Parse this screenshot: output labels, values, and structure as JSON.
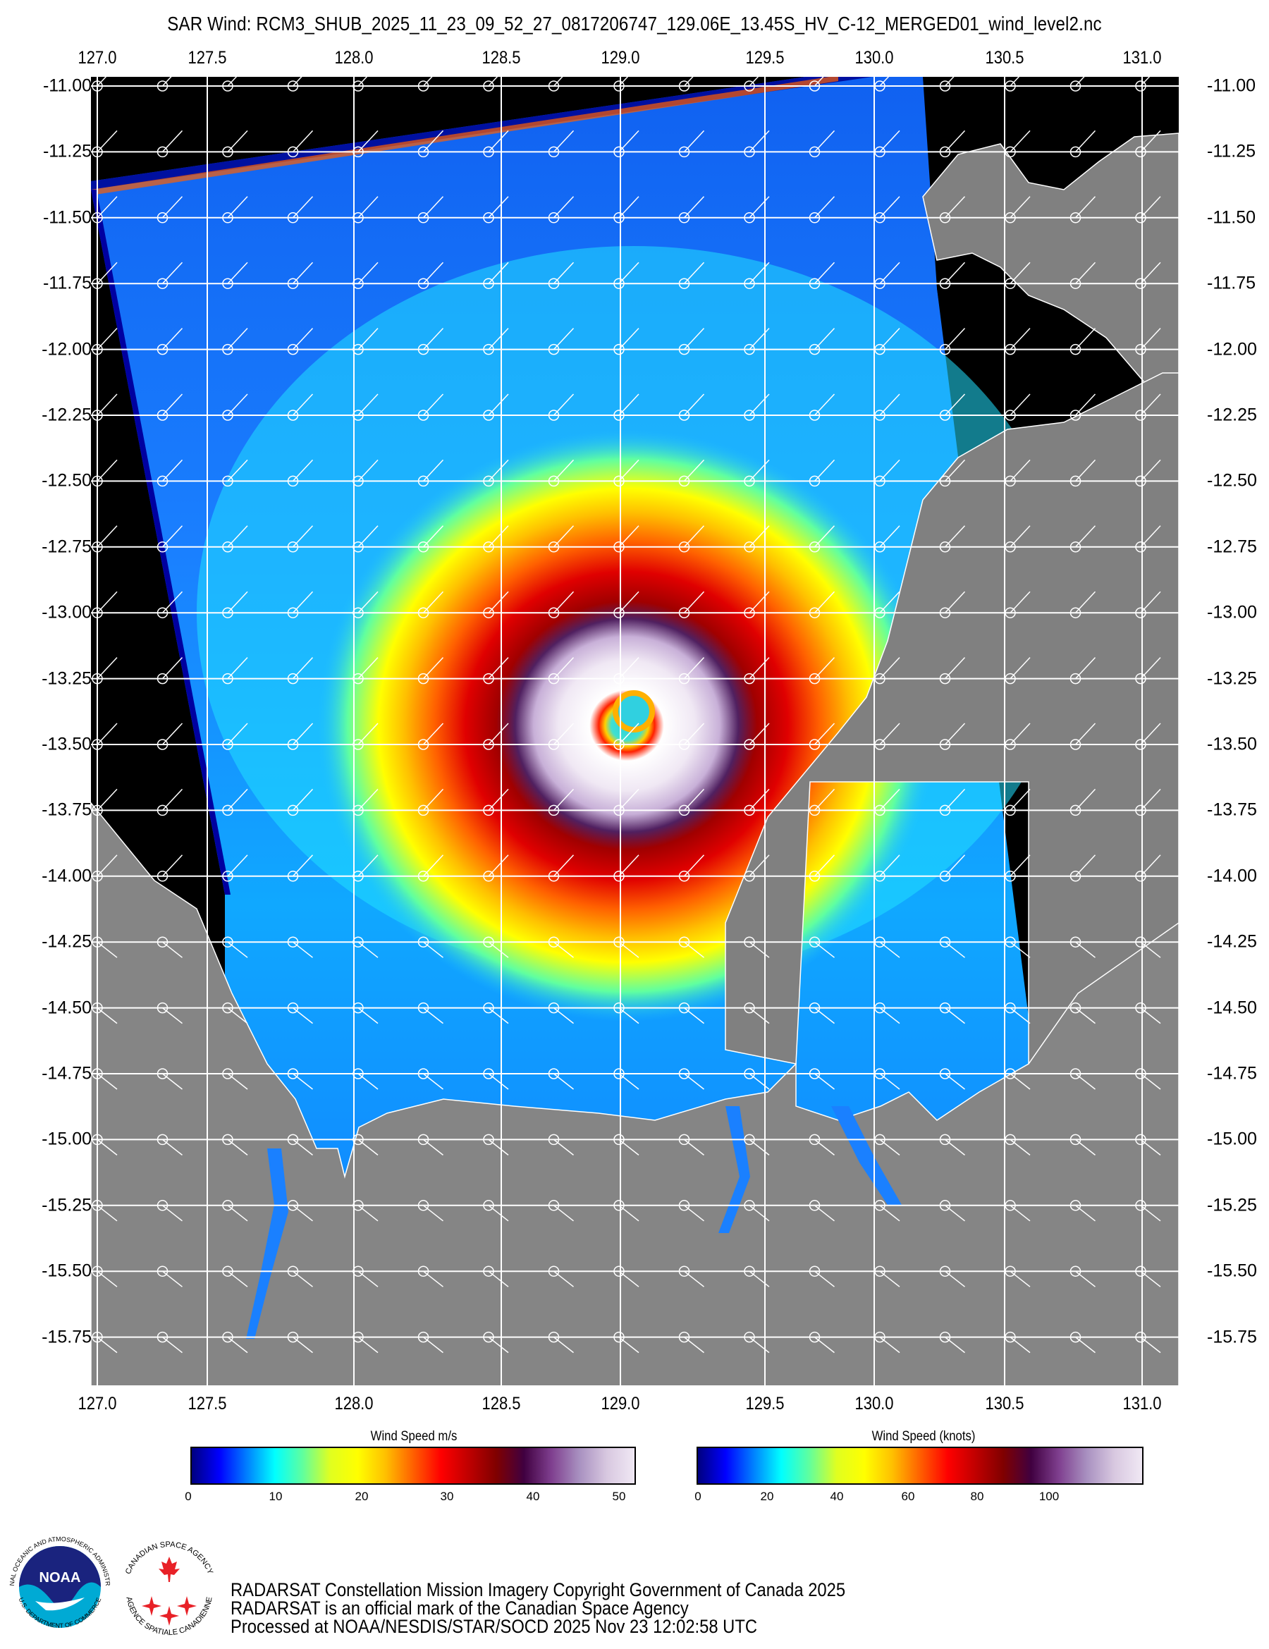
{
  "title": "SAR Wind: RCM3_SHUB_2025_11_23_09_52_27_0817206747_129.06E_13.45S_HV_C-12_MERGED01_wind_level2.nc",
  "map": {
    "lon_ticks": [
      "127.0",
      "127.5",
      "128.0",
      "128.5",
      "129.0",
      "129.5",
      "130.0",
      "130.5",
      "131.0"
    ],
    "lat_ticks": [
      "-11.00",
      "-11.25",
      "-11.50",
      "-11.75",
      "-12.00",
      "-12.25",
      "-12.50",
      "-12.75",
      "-13.00",
      "-13.25",
      "-13.50",
      "-13.75",
      "-14.00",
      "-14.25",
      "-14.50",
      "-14.75",
      "-15.00",
      "-15.25",
      "-15.50",
      "-15.75"
    ],
    "storm_center": {
      "lon": "129.06E",
      "lat": "13.45S"
    },
    "colors": {
      "no_data": "#000000",
      "land": "#808080",
      "grid": "#ffffff"
    }
  },
  "legend_ms": {
    "title": "Wind Speed m/s",
    "ticks": [
      "0",
      "10",
      "20",
      "30",
      "40",
      "50"
    ],
    "min": 0,
    "max": 52
  },
  "legend_knots": {
    "title": "Wind Speed (knots)",
    "ticks": [
      "0",
      "20",
      "40",
      "60",
      "80",
      "100"
    ],
    "min": 0,
    "max": 101
  },
  "colorscale": [
    "#00007f",
    "#0000ff",
    "#0080ff",
    "#00ffff",
    "#5fff9f",
    "#e0ff20",
    "#ffff00",
    "#ffc000",
    "#ff6000",
    "#ff0000",
    "#c00000",
    "#800000",
    "#400040",
    "#7f3f8f",
    "#a890c0",
    "#d8c8e0",
    "#f0e8f4"
  ],
  "footer": {
    "line1": "RADARSAT Constellation Mission Imagery Copyright Government of Canada 2025",
    "line2": "RADARSAT is an official mark of the Canadian Space Agency",
    "line3": "Processed at NOAA/NESDIS/STAR/SOCD 2025 Nov 23 12:02:58 UTC"
  },
  "logos": {
    "noaa": {
      "inner_text": "NOAA",
      "ring_top": "NATIONAL OCEANIC AND ATMOSPHERIC ADMINISTRATION",
      "ring_bottom": "U.S. DEPARTMENT OF COMMERCE"
    },
    "csa": {
      "ring_top": "CANADIAN SPACE AGENCY",
      "ring_bottom": "AGENCE SPATIALE CANADIENNE"
    }
  }
}
